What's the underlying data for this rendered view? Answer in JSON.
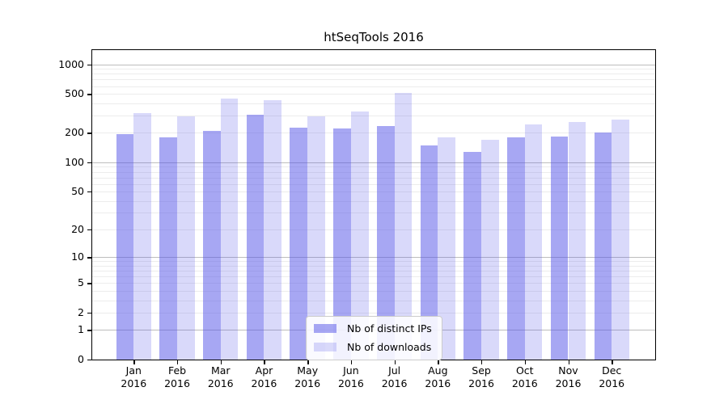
{
  "title": "htSeqTools 2016",
  "chart_data": {
    "type": "bar",
    "title": "htSeqTools 2016",
    "y_scale": "log1p",
    "grid": "on",
    "legend_position": "bottom-center",
    "categories": [
      "Jan",
      "Feb",
      "Mar",
      "Apr",
      "May",
      "Jun",
      "Jul",
      "Aug",
      "Sep",
      "Oct",
      "Nov",
      "Dec"
    ],
    "category_year": "2016",
    "series": [
      {
        "name": "Nb of distinct IPs",
        "values": [
          195,
          180,
          211,
          304,
          226,
          223,
          235,
          148,
          128,
          179,
          183,
          201
        ]
      },
      {
        "name": "Nb of downloads",
        "values": [
          318,
          297,
          445,
          430,
          294,
          331,
          507,
          180,
          170,
          244,
          260,
          275
        ]
      }
    ],
    "y_ticks": [
      0,
      1,
      2,
      5,
      10,
      20,
      50,
      100,
      200,
      500,
      1000
    ],
    "ylim": [
      0,
      1300
    ]
  },
  "colors": {
    "series_fill_rgba": [
      "rgba(80,80,232,0.5)",
      "rgba(80,80,232,0.22)"
    ],
    "series_hex_on_white": [
      "#a7a7f3",
      "#d8d8fa"
    ],
    "grid_major": "#bdbdbd",
    "grid_minor": "#ececec",
    "axis": "#000000",
    "legend_border": "#cccccc"
  }
}
